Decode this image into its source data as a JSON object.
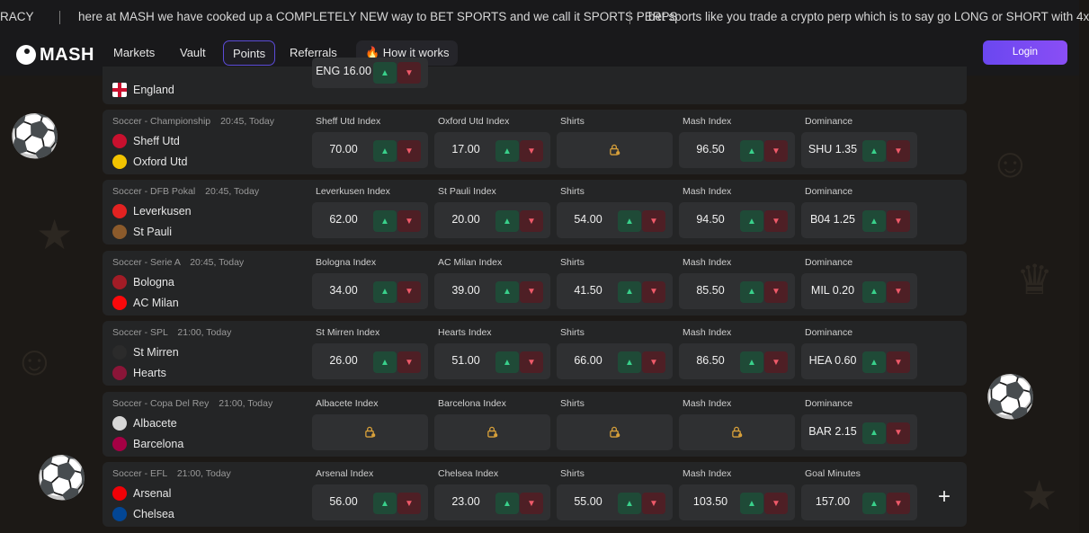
{
  "ticker": {
    "segments": [
      "RACY",
      "here at MASH we have cooked up a COMPLETELY NEW way to BET SPORTS and we call it SPORTS PERPS",
      "bet sports like you trade a crypto perp which is to say go LONG or SHORT with 4x"
    ]
  },
  "nav": {
    "logo": "MASH",
    "items": [
      "Markets",
      "Vault",
      "Points",
      "Referrals"
    ],
    "how_it_works": "🔥 How it works",
    "login": "Login"
  },
  "top_partial": {
    "team": "England",
    "value": "ENG 16.00"
  },
  "colors": {
    "accent": "#6a47f0",
    "up": "#39d18b",
    "down": "#f05a6a"
  },
  "matches": [
    {
      "league": "Soccer - Championship",
      "time": "20:45, Today",
      "home": "Sheff Utd",
      "away": "Oxford Utd",
      "home_badge": "#c8102e",
      "away_badge": "#f2c300",
      "markets": [
        {
          "label": "Sheff Utd Index",
          "value": "70.00",
          "locked": false
        },
        {
          "label": "Oxford Utd Index",
          "value": "17.00",
          "locked": false
        },
        {
          "label": "Shirts",
          "value": "",
          "locked": true
        },
        {
          "label": "Mash Index",
          "value": "96.50",
          "locked": false
        },
        {
          "label": "Dominance",
          "value": "SHU 1.35",
          "locked": false
        }
      ]
    },
    {
      "league": "Soccer - DFB Pokal",
      "time": "20:45, Today",
      "home": "Leverkusen",
      "away": "St Pauli",
      "home_badge": "#e32221",
      "away_badge": "#8b5a2b",
      "markets": [
        {
          "label": "Leverkusen Index",
          "value": "62.00",
          "locked": false
        },
        {
          "label": "St Pauli Index",
          "value": "20.00",
          "locked": false
        },
        {
          "label": "Shirts",
          "value": "54.00",
          "locked": false
        },
        {
          "label": "Mash Index",
          "value": "94.50",
          "locked": false
        },
        {
          "label": "Dominance",
          "value": "B04 1.25",
          "locked": false
        }
      ]
    },
    {
      "league": "Soccer - Serie A",
      "time": "20:45, Today",
      "home": "Bologna",
      "away": "AC Milan",
      "home_badge": "#a21c26",
      "away_badge": "#fb090b",
      "markets": [
        {
          "label": "Bologna Index",
          "value": "34.00",
          "locked": false
        },
        {
          "label": "AC Milan Index",
          "value": "39.00",
          "locked": false
        },
        {
          "label": "Shirts",
          "value": "41.50",
          "locked": false
        },
        {
          "label": "Mash Index",
          "value": "85.50",
          "locked": false
        },
        {
          "label": "Dominance",
          "value": "MIL 0.20",
          "locked": false
        }
      ]
    },
    {
      "league": "Soccer - SPL",
      "time": "21:00, Today",
      "home": "St Mirren",
      "away": "Hearts",
      "home_badge": "#2b2b2b",
      "away_badge": "#8a1538",
      "markets": [
        {
          "label": "St Mirren Index",
          "value": "26.00",
          "locked": false
        },
        {
          "label": "Hearts Index",
          "value": "51.00",
          "locked": false
        },
        {
          "label": "Shirts",
          "value": "66.00",
          "locked": false
        },
        {
          "label": "Mash Index",
          "value": "86.50",
          "locked": false
        },
        {
          "label": "Dominance",
          "value": "HEA 0.60",
          "locked": false
        }
      ]
    },
    {
      "league": "Soccer - Copa Del Rey",
      "time": "21:00, Today",
      "home": "Albacete",
      "away": "Barcelona",
      "home_badge": "#d7d7d7",
      "away_badge": "#a50044",
      "markets": [
        {
          "label": "Albacete Index",
          "value": "",
          "locked": true
        },
        {
          "label": "Barcelona Index",
          "value": "",
          "locked": true
        },
        {
          "label": "Shirts",
          "value": "",
          "locked": true
        },
        {
          "label": "Mash Index",
          "value": "",
          "locked": true
        },
        {
          "label": "Dominance",
          "value": "BAR 2.15",
          "locked": false
        }
      ]
    },
    {
      "league": "Soccer - EFL",
      "time": "21:00, Today",
      "home": "Arsenal",
      "away": "Chelsea",
      "home_badge": "#ef0107",
      "away_badge": "#034694",
      "markets": [
        {
          "label": "Arsenal Index",
          "value": "56.00",
          "locked": false
        },
        {
          "label": "Chelsea Index",
          "value": "23.00",
          "locked": false
        },
        {
          "label": "Shirts",
          "value": "55.00",
          "locked": false
        },
        {
          "label": "Mash Index",
          "value": "103.50",
          "locked": false
        },
        {
          "label": "Goal Minutes",
          "value": "157.00",
          "locked": false
        }
      ]
    }
  ]
}
